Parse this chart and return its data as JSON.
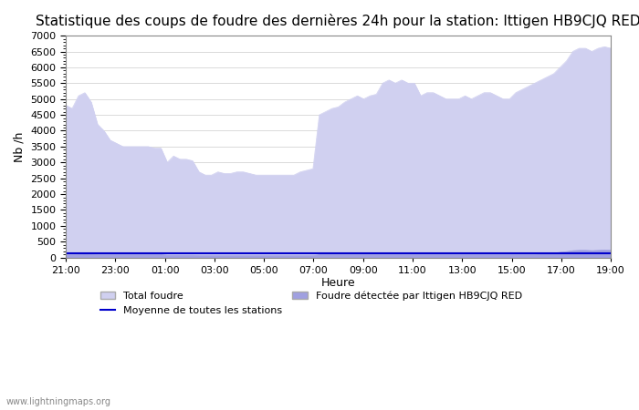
{
  "title": "Statistique des coups de foudre des dernières 24h pour la station: Ittigen HB9CJQ RED",
  "xlabel": "Heure",
  "ylabel": "Nb /h",
  "ylim": [
    0,
    7000
  ],
  "yticks": [
    0,
    500,
    1000,
    1500,
    2000,
    2500,
    3000,
    3500,
    4000,
    4500,
    5000,
    5500,
    6000,
    6500,
    7000
  ],
  "xtick_labels": [
    "21:00",
    "23:00",
    "01:00",
    "03:00",
    "05:00",
    "07:00",
    "09:00",
    "11:00",
    "13:00",
    "15:00",
    "17:00",
    "19:00"
  ],
  "watermark": "www.lightningmaps.org",
  "color_total": "#d0d0f0",
  "color_detected": "#a0a0e0",
  "color_mean": "#0000cc",
  "background": "#ffffff",
  "grid_color": "#cccccc",
  "title_fontsize": 11,
  "total_foudre": [
    4800,
    4700,
    5100,
    5200,
    4900,
    4200,
    4000,
    3700,
    3600,
    3500,
    3500,
    3500,
    3500,
    3500,
    3450,
    3450,
    3000,
    3200,
    3100,
    3100,
    3050,
    2700,
    2600,
    2600,
    2700,
    2650,
    2650,
    2700,
    2700,
    2650,
    2600,
    2600,
    2600,
    2600,
    2600,
    2600,
    2600,
    2700,
    2750,
    2800,
    4500,
    4600,
    4700,
    4750,
    4900,
    5000,
    5100,
    5000,
    5100,
    5150,
    5500,
    5600,
    5500,
    5600,
    5500,
    5500,
    5100,
    5200,
    5200,
    5100,
    5000,
    5000,
    5000,
    5100,
    5000,
    5100,
    5200,
    5200,
    5100,
    5000,
    5000,
    5200,
    5300,
    5400,
    5500,
    5600,
    5700,
    5800,
    6000,
    6200,
    6500,
    6600,
    6600,
    6500,
    6600,
    6650,
    6600
  ],
  "detected_foudre": [
    100,
    100,
    110,
    120,
    110,
    100,
    100,
    100,
    100,
    100,
    100,
    100,
    100,
    100,
    100,
    100,
    80,
    80,
    80,
    80,
    80,
    70,
    70,
    70,
    70,
    70,
    70,
    70,
    70,
    70,
    70,
    70,
    70,
    70,
    70,
    70,
    70,
    70,
    70,
    70,
    100,
    100,
    100,
    100,
    100,
    100,
    100,
    100,
    100,
    100,
    100,
    100,
    100,
    100,
    100,
    100,
    100,
    100,
    100,
    100,
    100,
    100,
    100,
    100,
    100,
    100,
    100,
    100,
    100,
    100,
    100,
    100,
    100,
    100,
    100,
    120,
    130,
    150,
    180,
    200,
    230,
    240,
    240,
    230,
    240,
    250,
    240
  ],
  "mean_line": [
    120,
    120,
    120,
    120,
    120,
    120,
    120,
    120,
    120,
    120,
    120,
    120,
    120,
    120,
    120,
    120,
    120,
    120,
    120,
    120,
    120,
    120,
    120,
    120,
    120,
    120,
    120,
    120,
    120,
    120,
    120,
    120,
    120,
    120,
    120,
    120,
    120,
    120,
    120,
    120,
    120,
    120,
    120,
    120,
    120,
    120,
    120,
    120,
    120,
    120,
    120,
    120,
    120,
    120,
    120,
    120,
    120,
    120,
    120,
    120,
    120,
    120,
    120,
    120,
    120,
    120,
    120,
    120,
    120,
    120,
    120,
    120,
    120,
    120,
    120,
    120,
    120,
    120,
    120,
    120,
    120,
    120,
    120,
    120,
    120,
    120,
    120
  ]
}
